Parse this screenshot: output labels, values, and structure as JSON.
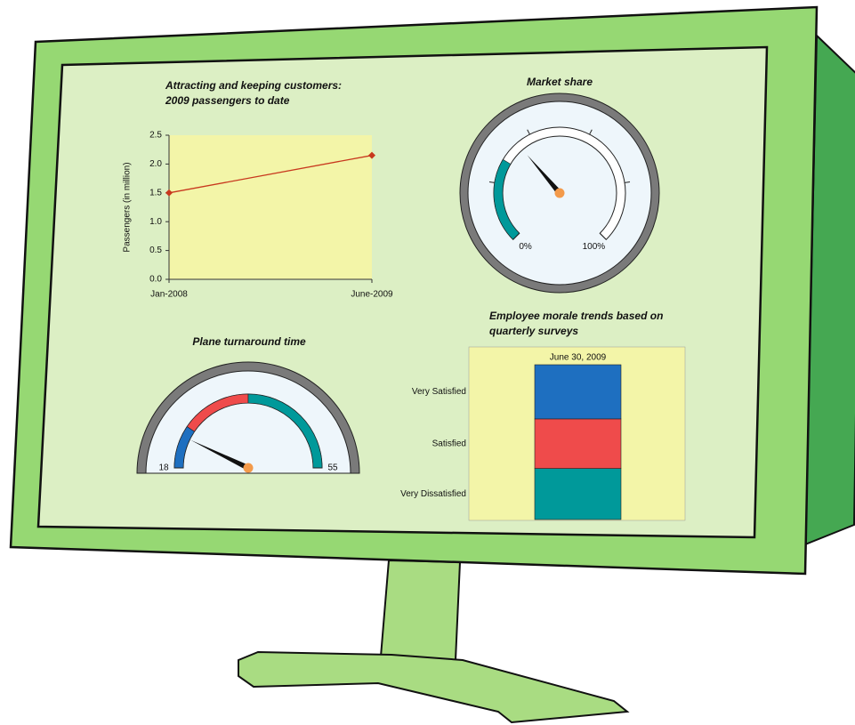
{
  "chart_data": [
    {
      "type": "line",
      "title": "Attracting and keeping customers: 2009 passengers to date",
      "y_label": "Passengers (in million)",
      "categories": [
        "Jan-2008",
        "June-2009"
      ],
      "series": [
        {
          "color": "#c8381e",
          "values": [
            1.5,
            2.15
          ]
        }
      ],
      "ylim": [
        0,
        2.5
      ],
      "yticks": [
        {
          "value": 0,
          "label": "0.0"
        },
        0.5,
        {
          "value": 1,
          "label": "1.0"
        },
        1.5,
        {
          "value": 2,
          "label": "2.0"
        },
        2.5
      ]
    },
    {
      "type": "gauge",
      "title": "Market share",
      "sweep": 270,
      "value": 35,
      "range": [
        0,
        100
      ],
      "ticks": [
        {
          "value": 0,
          "label": "0%"
        },
        {
          "value": 100,
          "label": "100%"
        }
      ],
      "minor_ticks": [
        20,
        40,
        60,
        80
      ],
      "bands": [
        {
          "from": 0,
          "to": 28,
          "color": "#00999a"
        }
      ]
    },
    {
      "type": "gauge",
      "title": "Plane turnaround time",
      "sweep": 180,
      "value": 23.3,
      "range": [
        18,
        55
      ],
      "ticks": [
        18,
        55
      ],
      "minor_ticks": [],
      "bands": [
        {
          "from": 18,
          "to": 25,
          "color": "#1e6fc0"
        },
        {
          "from": 25,
          "to": 36.5,
          "color": "#ef4b4b"
        },
        {
          "from": 36.5,
          "to": 55,
          "color": "#00999a"
        }
      ]
    },
    {
      "type": "stacked-bar",
      "title": "Employee morale trends based on quarterly surveys",
      "categories": [
        "June 30, 2009"
      ],
      "series": [
        {
          "name": "Very Satisfied",
          "color": "#1e6fc0",
          "values": [
            35
          ]
        },
        {
          "name": "Satisfied",
          "color": "#ef4b4b",
          "values": [
            32
          ]
        },
        {
          "name": "Very Dissatisfied",
          "color": "#00999a",
          "values": [
            33
          ]
        }
      ]
    }
  ]
}
